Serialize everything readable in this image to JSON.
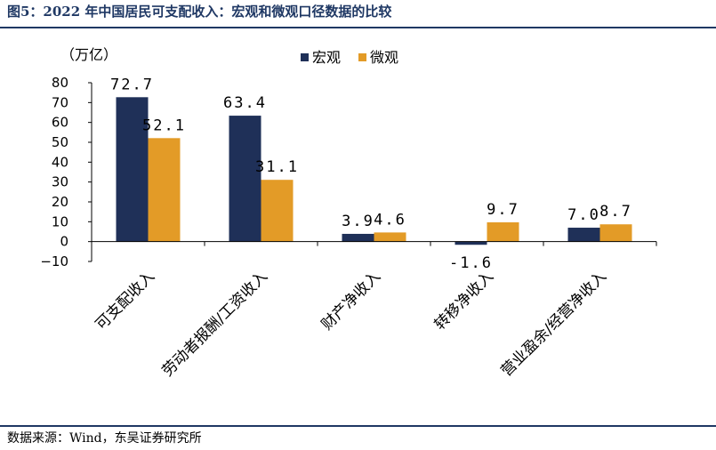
{
  "header": {
    "title": "图5：2022 年中国居民可支配收入：宏观和微观口径数据的比较"
  },
  "footer": {
    "source": "数据来源：Wind，东吴证券研究所"
  },
  "colors": {
    "macro": "#1f3058",
    "micro": "#e39b27",
    "rule": "#1f3864"
  },
  "chart_data": {
    "type": "bar",
    "unit_label": "（万亿）",
    "categories": [
      "可支配收入",
      "劳动者报酬/工资收入",
      "财产净收入",
      "转移净收入",
      "营业盈余/经营净收入"
    ],
    "series": [
      {
        "name": "宏观",
        "values": [
          72.7,
          63.4,
          3.9,
          -1.6,
          7.0
        ],
        "labels": [
          "72.7",
          "63.4",
          "3.9",
          "-1.6",
          "7.0"
        ]
      },
      {
        "name": "微观",
        "values": [
          52.1,
          31.1,
          4.6,
          9.7,
          8.7
        ],
        "labels": [
          "52.1",
          "31.1",
          "4.6",
          "9.7",
          "8.7"
        ]
      }
    ],
    "yticks": [
      "80",
      "70",
      "60",
      "50",
      "40",
      "30",
      "20",
      "10",
      "0",
      "−10"
    ],
    "ylim": [
      -10,
      80
    ],
    "legend_position": "top-center",
    "grid": false
  }
}
